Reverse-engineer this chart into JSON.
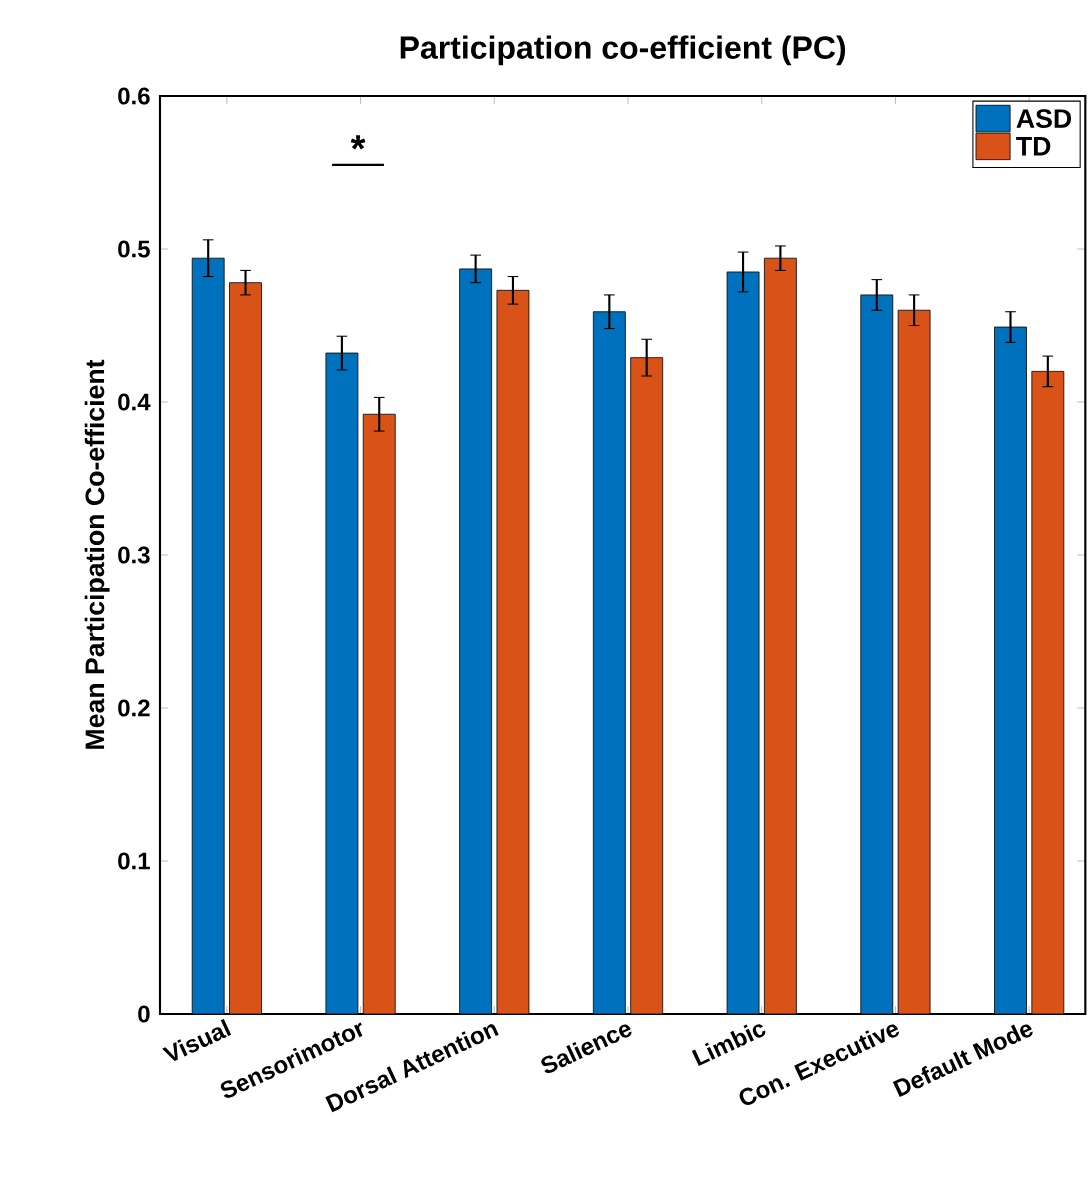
{
  "chart_data": {
    "type": "bar",
    "title": "Participation co-efficient (PC)",
    "ylabel": "Mean Participation Co-efficient",
    "categories": [
      "Visual",
      "Sensorimotor",
      "Dorsal Attention",
      "Salience",
      "Limbic",
      "Con. Executive",
      "Default Mode"
    ],
    "series": [
      {
        "name": "ASD",
        "color": "#0072bd",
        "values": [
          0.494,
          0.432,
          0.487,
          0.459,
          0.485,
          0.47,
          0.449
        ],
        "errors": [
          0.012,
          0.011,
          0.009,
          0.011,
          0.013,
          0.01,
          0.01
        ]
      },
      {
        "name": "TD",
        "color": "#d95319",
        "values": [
          0.478,
          0.392,
          0.473,
          0.429,
          0.494,
          0.46,
          0.42
        ],
        "errors": [
          0.008,
          0.011,
          0.009,
          0.012,
          0.008,
          0.01,
          0.01
        ]
      }
    ],
    "ylim": [
      0,
      0.6
    ],
    "yticks": [
      0,
      0.1,
      0.2,
      0.3,
      0.4,
      0.5,
      0.6
    ],
    "annotations": [
      "*"
    ],
    "legend": "top right",
    "grid": false
  }
}
